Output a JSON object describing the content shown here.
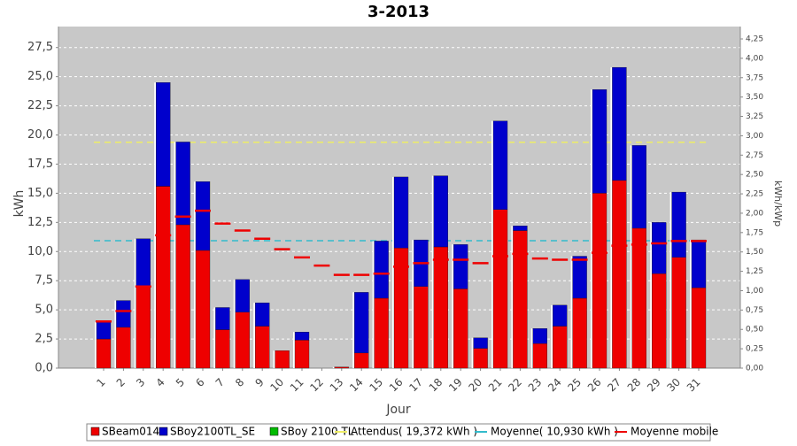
{
  "chart_data": {
    "type": "bar",
    "title": "3-2013",
    "xlabel": "Jour",
    "ylabel": "kWh",
    "y2label": "kWh/kWp",
    "categories": [
      "1",
      "2",
      "3",
      "4",
      "5",
      "6",
      "7",
      "8",
      "9",
      "10",
      "11",
      "12",
      "13",
      "14",
      "15",
      "16",
      "17",
      "18",
      "19",
      "20",
      "21",
      "22",
      "23",
      "24",
      "25",
      "26",
      "27",
      "28",
      "29",
      "30",
      "31"
    ],
    "series": [
      {
        "name": "SBeam014",
        "color": "#ee0000",
        "values": [
          2.5,
          3.5,
          7.0,
          15.6,
          12.3,
          10.1,
          3.3,
          4.8,
          3.6,
          1.5,
          2.4,
          0,
          0.095,
          1.3,
          6.0,
          10.3,
          7.0,
          10.4,
          6.8,
          1.7,
          13.6,
          11.8,
          2.1,
          3.6,
          6.0,
          15.0,
          16.1,
          12.0,
          8.1,
          9.5,
          6.9
        ]
      },
      {
        "name": "SBoy2100TL_SE",
        "color": "#0000cc",
        "values": [
          1.45,
          2.3,
          4.1,
          8.9,
          7.1,
          5.9,
          1.9,
          2.8,
          2.0,
          0,
          0.7,
          0,
          0,
          5.2,
          4.9,
          6.1,
          4.0,
          6.1,
          3.8,
          0.9,
          7.6,
          0.4,
          1.3,
          1.8,
          3.6,
          8.9,
          9.7,
          7.1,
          4.4,
          5.6,
          4.1
        ]
      },
      {
        "name": "SBoy 2100 TL",
        "color": "#00bb00",
        "values": [
          0,
          0,
          0,
          0,
          0,
          0,
          0,
          0,
          0,
          0,
          0,
          0,
          0,
          0,
          0,
          0,
          0,
          0,
          0,
          0,
          0,
          0,
          0,
          0,
          0,
          0,
          0,
          0,
          0,
          0,
          0
        ]
      }
    ],
    "reference_lines": [
      {
        "name": "Attendus( 19,372 kWh )",
        "color": "#eeee66",
        "value": 19.372
      },
      {
        "name": "Moyenne( 10,930 kWh )",
        "color": "#33bbcc",
        "value": 10.93
      }
    ],
    "moving_average": {
      "name": "Moyenne mobile",
      "color": "#ee0000",
      "values": [
        4.0,
        4.9,
        7.0,
        11.4,
        13.0,
        13.5,
        12.4,
        11.8,
        11.1,
        10.2,
        9.5,
        8.8,
        8.0,
        8.0,
        8.1,
        8.7,
        9.0,
        9.3,
        9.3,
        9.0,
        9.6,
        9.8,
        9.4,
        9.3,
        9.3,
        9.9,
        10.5,
        10.6,
        10.7,
        10.9,
        10.9
      ]
    },
    "ylim": [
      0,
      29.3
    ],
    "yticks": [
      {
        "value": 0,
        "label": "0,0"
      },
      {
        "value": 2.5,
        "label": "2,5"
      },
      {
        "value": 5,
        "label": "5,0"
      },
      {
        "value": 7.5,
        "label": "7,5"
      },
      {
        "value": 10,
        "label": "10,0"
      },
      {
        "value": 12.5,
        "label": "12,5"
      },
      {
        "value": 15,
        "label": "15,0"
      },
      {
        "value": 17.5,
        "label": "17,5"
      },
      {
        "value": 20,
        "label": "20,0"
      },
      {
        "value": 22.5,
        "label": "22,5"
      },
      {
        "value": 25,
        "label": "25,0"
      },
      {
        "value": 27.5,
        "label": "27,5"
      }
    ],
    "y2lim": [
      0,
      4.41
    ],
    "y2ticks": [
      {
        "value": 0,
        "label": "0,00"
      },
      {
        "value": 0.25,
        "label": "0,25"
      },
      {
        "value": 0.5,
        "label": "0,50"
      },
      {
        "value": 0.75,
        "label": "0,75"
      },
      {
        "value": 1,
        "label": "1,00"
      },
      {
        "value": 1.25,
        "label": "1,25"
      },
      {
        "value": 1.5,
        "label": "1,50"
      },
      {
        "value": 1.75,
        "label": "1,75"
      },
      {
        "value": 2,
        "label": "2,00"
      },
      {
        "value": 2.25,
        "label": "2,25"
      },
      {
        "value": 2.5,
        "label": "2,50"
      },
      {
        "value": 2.75,
        "label": "2,75"
      },
      {
        "value": 3,
        "label": "3,00"
      },
      {
        "value": 3.25,
        "label": "3,25"
      },
      {
        "value": 3.5,
        "label": "3,50"
      },
      {
        "value": 3.75,
        "label": "3,75"
      },
      {
        "value": 4,
        "label": "4,00"
      },
      {
        "value": 4.25,
        "label": "4,25"
      }
    ],
    "grid": true
  }
}
